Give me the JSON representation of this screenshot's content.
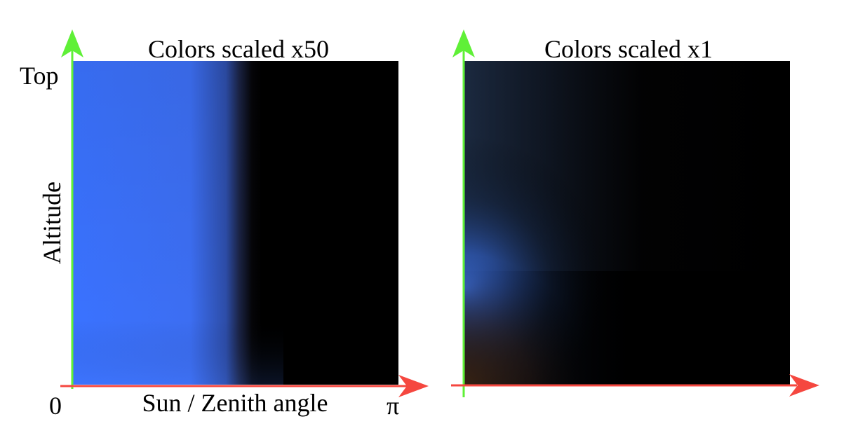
{
  "left_panel": {
    "title": "Colors scaled x50",
    "y_top_label": "Top",
    "y_axis_label": "Altitude",
    "x_origin_label": "0",
    "x_axis_label": "Sun / Zenith angle",
    "x_end_label": "π"
  },
  "right_panel": {
    "title": "Colors scaled x1"
  },
  "colors": {
    "y_axis_arrow": "#5ff037",
    "x_axis_arrow": "#f5473f",
    "sky_blue": "#3a72ff",
    "background": "#000000"
  }
}
